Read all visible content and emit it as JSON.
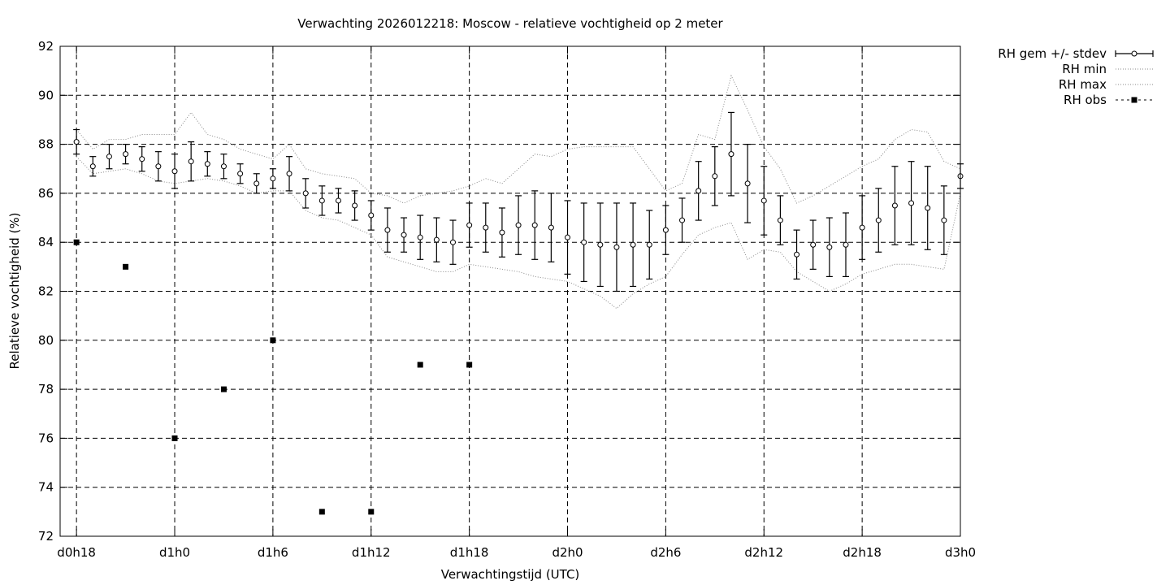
{
  "chart_data": {
    "type": "line",
    "title": "Verwachting 2026012218: Moscow - relatieve vochtigheid op 2 meter",
    "xlabel": "Verwachtingstijd (UTC)",
    "ylabel": "Relatieve vochtigheid (%)",
    "xlim": [
      17,
      72
    ],
    "ylim": [
      72,
      92
    ],
    "grid": true,
    "legend_position": "outside-top-right",
    "x_ticks": [
      {
        "value": 18,
        "label": "d0h18"
      },
      {
        "value": 24,
        "label": "d1h0"
      },
      {
        "value": 30,
        "label": "d1h6"
      },
      {
        "value": 36,
        "label": "d1h12"
      },
      {
        "value": 42,
        "label": "d1h18"
      },
      {
        "value": 48,
        "label": "d2h0"
      },
      {
        "value": 54,
        "label": "d2h6"
      },
      {
        "value": 60,
        "label": "d2h12"
      },
      {
        "value": 66,
        "label": "d2h18"
      },
      {
        "value": 72,
        "label": "d3h0"
      }
    ],
    "y_ticks": [
      "72",
      "74",
      "76",
      "78",
      "80",
      "82",
      "84",
      "86",
      "88",
      "90",
      "92"
    ],
    "series": [
      {
        "name": "RH gem +/- stdev",
        "style": "errorbars",
        "x": [
          18,
          19,
          20,
          21,
          22,
          23,
          24,
          25,
          26,
          27,
          28,
          29,
          30,
          31,
          32,
          33,
          34,
          35,
          36,
          37,
          38,
          39,
          40,
          41,
          42,
          43,
          44,
          45,
          46,
          47,
          48,
          49,
          50,
          51,
          52,
          53,
          54,
          55,
          56,
          57,
          58,
          59,
          60,
          61,
          62,
          63,
          64,
          65,
          66,
          67,
          68,
          69,
          70,
          71,
          72
        ],
        "mean": [
          88.1,
          87.1,
          87.5,
          87.6,
          87.4,
          87.1,
          86.9,
          87.3,
          87.2,
          87.1,
          86.8,
          86.4,
          86.6,
          86.8,
          86.0,
          85.7,
          85.7,
          85.5,
          85.1,
          84.5,
          84.3,
          84.2,
          84.1,
          84.0,
          84.7,
          84.6,
          84.4,
          84.7,
          84.7,
          84.6,
          84.2,
          84.0,
          83.9,
          83.8,
          83.9,
          83.9,
          84.5,
          84.9,
          86.1,
          86.7,
          87.6,
          86.4,
          85.7,
          84.9,
          83.5,
          83.9,
          83.8,
          83.9,
          84.6,
          84.9,
          85.5,
          85.6,
          85.4,
          84.9,
          86.7
        ],
        "stdev": [
          0.5,
          0.4,
          0.5,
          0.4,
          0.5,
          0.6,
          0.7,
          0.8,
          0.5,
          0.5,
          0.4,
          0.4,
          0.4,
          0.7,
          0.6,
          0.6,
          0.5,
          0.6,
          0.6,
          0.9,
          0.7,
          0.9,
          0.9,
          0.9,
          0.9,
          1.0,
          1.0,
          1.2,
          1.4,
          1.4,
          1.5,
          1.6,
          1.7,
          1.8,
          1.7,
          1.4,
          1.0,
          0.9,
          1.2,
          1.2,
          1.7,
          1.6,
          1.4,
          1.0,
          1.0,
          1.0,
          1.2,
          1.3,
          1.3,
          1.3,
          1.6,
          1.7,
          1.7,
          1.4,
          0.5
        ]
      },
      {
        "name": "RH min",
        "style": "dotted",
        "x": [
          18,
          19,
          20,
          21,
          22,
          23,
          24,
          25,
          26,
          27,
          28,
          29,
          30,
          31,
          32,
          33,
          34,
          35,
          36,
          37,
          38,
          39,
          40,
          41,
          42,
          43,
          44,
          45,
          46,
          47,
          48,
          49,
          50,
          51,
          52,
          53,
          54,
          55,
          56,
          57,
          58,
          59,
          60,
          61,
          62,
          63,
          64,
          65,
          66,
          67,
          68,
          69,
          70,
          71,
          72
        ],
        "values": [
          87.5,
          86.8,
          86.9,
          87.0,
          86.8,
          86.5,
          86.4,
          86.5,
          86.6,
          86.5,
          86.3,
          86.0,
          86.1,
          86.1,
          85.3,
          85.0,
          84.9,
          84.6,
          84.3,
          83.4,
          83.2,
          83.0,
          82.8,
          82.8,
          83.1,
          83.0,
          82.9,
          82.8,
          82.6,
          82.5,
          82.4,
          82.1,
          81.8,
          81.3,
          81.9,
          82.3,
          82.6,
          83.5,
          84.3,
          84.6,
          84.8,
          83.3,
          83.7,
          83.6,
          82.8,
          82.4,
          82.0,
          82.3,
          82.7,
          82.9,
          83.1,
          83.1,
          83.0,
          82.9,
          86.0
        ]
      },
      {
        "name": "RH max",
        "style": "dotted",
        "x": [
          18,
          19,
          20,
          21,
          22,
          23,
          24,
          25,
          26,
          27,
          28,
          29,
          30,
          31,
          32,
          33,
          34,
          35,
          36,
          37,
          38,
          39,
          40,
          41,
          42,
          43,
          44,
          45,
          46,
          47,
          48,
          49,
          50,
          51,
          52,
          53,
          54,
          55,
          56,
          57,
          58,
          59,
          60,
          61,
          62,
          63,
          64,
          65,
          66,
          67,
          68,
          69,
          70,
          71,
          72
        ],
        "values": [
          88.6,
          87.8,
          88.2,
          88.2,
          88.4,
          88.4,
          88.4,
          89.3,
          88.4,
          88.2,
          87.8,
          87.6,
          87.4,
          88.0,
          87.0,
          86.8,
          86.7,
          86.6,
          86.0,
          85.9,
          85.6,
          85.9,
          86.0,
          86.1,
          86.3,
          86.6,
          86.4,
          87.0,
          87.6,
          87.5,
          87.8,
          87.9,
          87.9,
          87.9,
          87.9,
          87.0,
          86.1,
          86.4,
          88.4,
          88.2,
          90.8,
          89.4,
          87.9,
          87.0,
          85.6,
          85.9,
          86.3,
          86.7,
          87.1,
          87.4,
          88.2,
          88.6,
          88.5,
          87.3,
          87.0
        ]
      },
      {
        "name": "RH obs",
        "style": "points",
        "x": [
          18,
          21,
          24,
          27,
          30,
          33,
          36,
          39,
          42
        ],
        "values": [
          84,
          83,
          76,
          78,
          80,
          73,
          73,
          79,
          79
        ]
      }
    ]
  }
}
